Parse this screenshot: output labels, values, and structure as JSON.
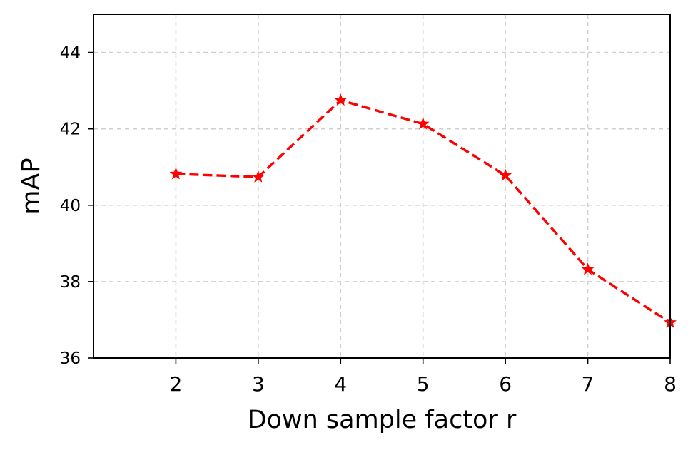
{
  "chart_data": {
    "type": "line",
    "title": "",
    "xlabel": "Down sample factor r",
    "ylabel": "mAP",
    "xlim": [
      1,
      8
    ],
    "ylim": [
      36,
      45
    ],
    "xticks": [
      2,
      3,
      4,
      5,
      6,
      7,
      8
    ],
    "yticks": [
      36,
      38,
      40,
      42,
      44
    ],
    "grid": true,
    "series": [
      {
        "x": [
          2,
          3,
          4,
          5,
          6,
          7,
          8
        ],
        "y": [
          40.82,
          40.74,
          42.75,
          42.13,
          40.78,
          38.32,
          36.93
        ],
        "color": "#ff0000",
        "line_style": "dashed",
        "marker": "star"
      }
    ]
  }
}
